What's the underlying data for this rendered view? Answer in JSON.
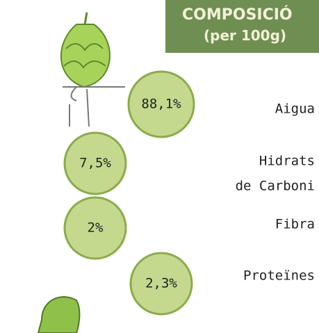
{
  "header": {
    "title": "COMPOSICIÓ",
    "subtitle": "(per 100g)"
  },
  "items": [
    {
      "value": "88,1%",
      "label": [
        "Aigua"
      ]
    },
    {
      "value": "7,5%",
      "label": [
        "Hidrats",
        "de Carboni"
      ]
    },
    {
      "value": "2%",
      "label": [
        "Fibra"
      ]
    },
    {
      "value": "2,3%",
      "label": [
        "Proteïnes"
      ]
    }
  ]
}
